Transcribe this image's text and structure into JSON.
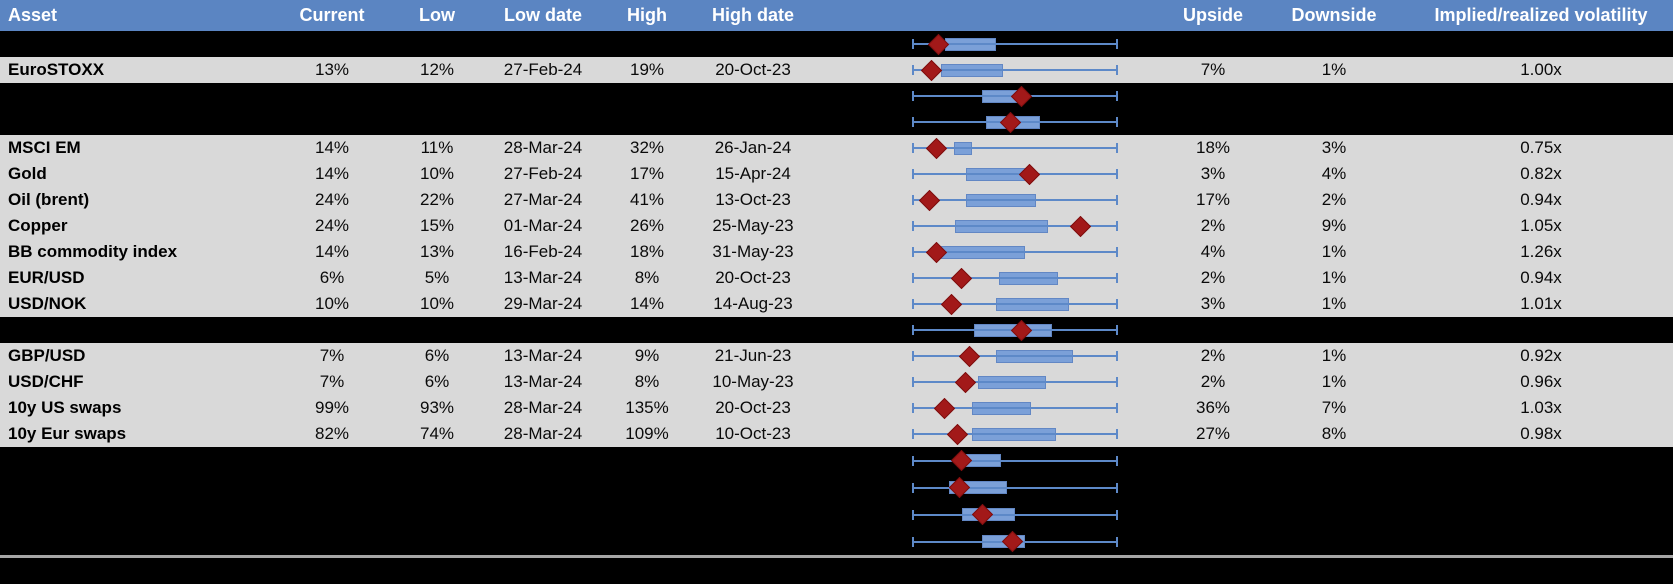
{
  "colors": {
    "header_bg": "#5b85c2",
    "header_text": "#ffffff",
    "row_bg": "#d9d9d9",
    "page_bg": "#000000",
    "box_fill": "#7ba0d8",
    "box_border": "#6287c4",
    "whisker": "#5d89c8",
    "diamond_fill": "#a21919",
    "diamond_border": "#7d0e0e",
    "separator": "#a6a6a6"
  },
  "chart_data": {
    "type": "table",
    "columns": [
      "Asset",
      "Current",
      "Low",
      "Low date",
      "High",
      "High date",
      "Upside",
      "Downside",
      "Implied/realized volatility"
    ],
    "plot_encoding": "each row has a horizontal box-whisker mini chart with a red diamond marker; box and diamond values are fractions 0-1 of the full whisker span",
    "rows": [
      {
        "type": "plot",
        "plot": {
          "box": [
            0.16,
            0.41
          ],
          "diamond": 0.13
        }
      },
      {
        "type": "data",
        "asset": "EuroSTOXX",
        "current": "13%",
        "low": "12%",
        "low_date": "27-Feb-24",
        "high": "19%",
        "high_date": "20-Oct-23",
        "upside": "7%",
        "downside": "1%",
        "implied_realized_vol": "1.00x",
        "plot": {
          "box": [
            0.14,
            0.44
          ],
          "diamond": 0.095
        }
      },
      {
        "type": "plot",
        "plot": {
          "box": [
            0.34,
            0.55
          ],
          "diamond": 0.53
        }
      },
      {
        "type": "plot",
        "plot": {
          "box": [
            0.36,
            0.62
          ],
          "diamond": 0.48
        }
      },
      {
        "type": "data",
        "asset": "MSCI EM",
        "current": "14%",
        "low": "11%",
        "low_date": "28-Mar-24",
        "high": "32%",
        "high_date": "26-Jan-24",
        "upside": "18%",
        "downside": "3%",
        "implied_realized_vol": "0.75x",
        "plot": {
          "box": [
            0.205,
            0.29
          ],
          "diamond": 0.12
        }
      },
      {
        "type": "data",
        "asset": "Gold",
        "current": "14%",
        "low": "10%",
        "low_date": "27-Feb-24",
        "high": "17%",
        "high_date": "15-Apr-24",
        "upside": "3%",
        "downside": "4%",
        "implied_realized_vol": "0.82x",
        "plot": {
          "box": [
            0.26,
            0.565
          ],
          "diamond": 0.57
        }
      },
      {
        "type": "data",
        "asset": "Oil (brent)",
        "current": "24%",
        "low": "22%",
        "low_date": "27-Mar-24",
        "high": "41%",
        "high_date": "13-Oct-23",
        "upside": "17%",
        "downside": "2%",
        "implied_realized_vol": "0.94x",
        "plot": {
          "box": [
            0.26,
            0.6
          ],
          "diamond": 0.083
        }
      },
      {
        "type": "data",
        "asset": "Copper",
        "current": "24%",
        "low": "15%",
        "low_date": "01-Mar-24",
        "high": "26%",
        "high_date": "25-May-23",
        "upside": "2%",
        "downside": "9%",
        "implied_realized_vol": "1.05x",
        "plot": {
          "box": [
            0.21,
            0.66
          ],
          "diamond": 0.82
        }
      },
      {
        "type": "data",
        "asset": "BB commodity index",
        "current": "14%",
        "low": "13%",
        "low_date": "16-Feb-24",
        "high": "18%",
        "high_date": "31-May-23",
        "upside": "4%",
        "downside": "1%",
        "implied_realized_vol": "1.26x",
        "plot": {
          "box": [
            0.12,
            0.55
          ],
          "diamond": 0.12
        }
      },
      {
        "type": "data",
        "asset": "EUR/USD",
        "current": "6%",
        "low": "5%",
        "low_date": "13-Mar-24",
        "high": "8%",
        "high_date": "20-Oct-23",
        "upside": "2%",
        "downside": "1%",
        "implied_realized_vol": "0.94x",
        "plot": {
          "box": [
            0.42,
            0.71
          ],
          "diamond": 0.24
        }
      },
      {
        "type": "data",
        "asset": "USD/NOK",
        "current": "10%",
        "low": "10%",
        "low_date": "29-Mar-24",
        "high": "14%",
        "high_date": "14-Aug-23",
        "upside": "3%",
        "downside": "1%",
        "implied_realized_vol": "1.01x",
        "plot": {
          "box": [
            0.41,
            0.76
          ],
          "diamond": 0.19
        }
      },
      {
        "type": "plot",
        "plot": {
          "box": [
            0.3,
            0.68
          ],
          "diamond": 0.53
        }
      },
      {
        "type": "data",
        "asset": "GBP/USD",
        "current": "7%",
        "low": "6%",
        "low_date": "13-Mar-24",
        "high": "9%",
        "high_date": "21-Jun-23",
        "upside": "2%",
        "downside": "1%",
        "implied_realized_vol": "0.92x",
        "plot": {
          "box": [
            0.41,
            0.78
          ],
          "diamond": 0.28
        }
      },
      {
        "type": "data",
        "asset": "USD/CHF",
        "current": "7%",
        "low": "6%",
        "low_date": "13-Mar-24",
        "high": "8%",
        "high_date": "10-May-23",
        "upside": "2%",
        "downside": "1%",
        "implied_realized_vol": "0.96x",
        "plot": {
          "box": [
            0.32,
            0.65
          ],
          "diamond": 0.26
        }
      },
      {
        "type": "data",
        "asset": "10y US swaps",
        "current": "99%",
        "low": "93%",
        "low_date": "28-Mar-24",
        "high": "135%",
        "high_date": "20-Oct-23",
        "upside": "36%",
        "downside": "7%",
        "implied_realized_vol": "1.03x",
        "plot": {
          "box": [
            0.29,
            0.58
          ],
          "diamond": 0.16
        }
      },
      {
        "type": "data",
        "asset": "10y Eur swaps",
        "current": "82%",
        "low": "74%",
        "low_date": "28-Mar-24",
        "high": "109%",
        "high_date": "10-Oct-23",
        "upside": "27%",
        "downside": "8%",
        "implied_realized_vol": "0.98x",
        "plot": {
          "box": [
            0.29,
            0.7
          ],
          "diamond": 0.22
        }
      },
      {
        "type": "plot",
        "tall": true,
        "plot": {
          "box": [
            0.22,
            0.43
          ],
          "diamond": 0.24
        }
      },
      {
        "type": "plot",
        "tall": true,
        "plot": {
          "box": [
            0.18,
            0.46
          ],
          "diamond": 0.23
        }
      },
      {
        "type": "plot",
        "tall": true,
        "plot": {
          "box": [
            0.245,
            0.5
          ],
          "diamond": 0.34
        }
      },
      {
        "type": "plot",
        "tall": true,
        "plot": {
          "box": [
            0.34,
            0.55
          ],
          "diamond": 0.49
        }
      }
    ]
  }
}
